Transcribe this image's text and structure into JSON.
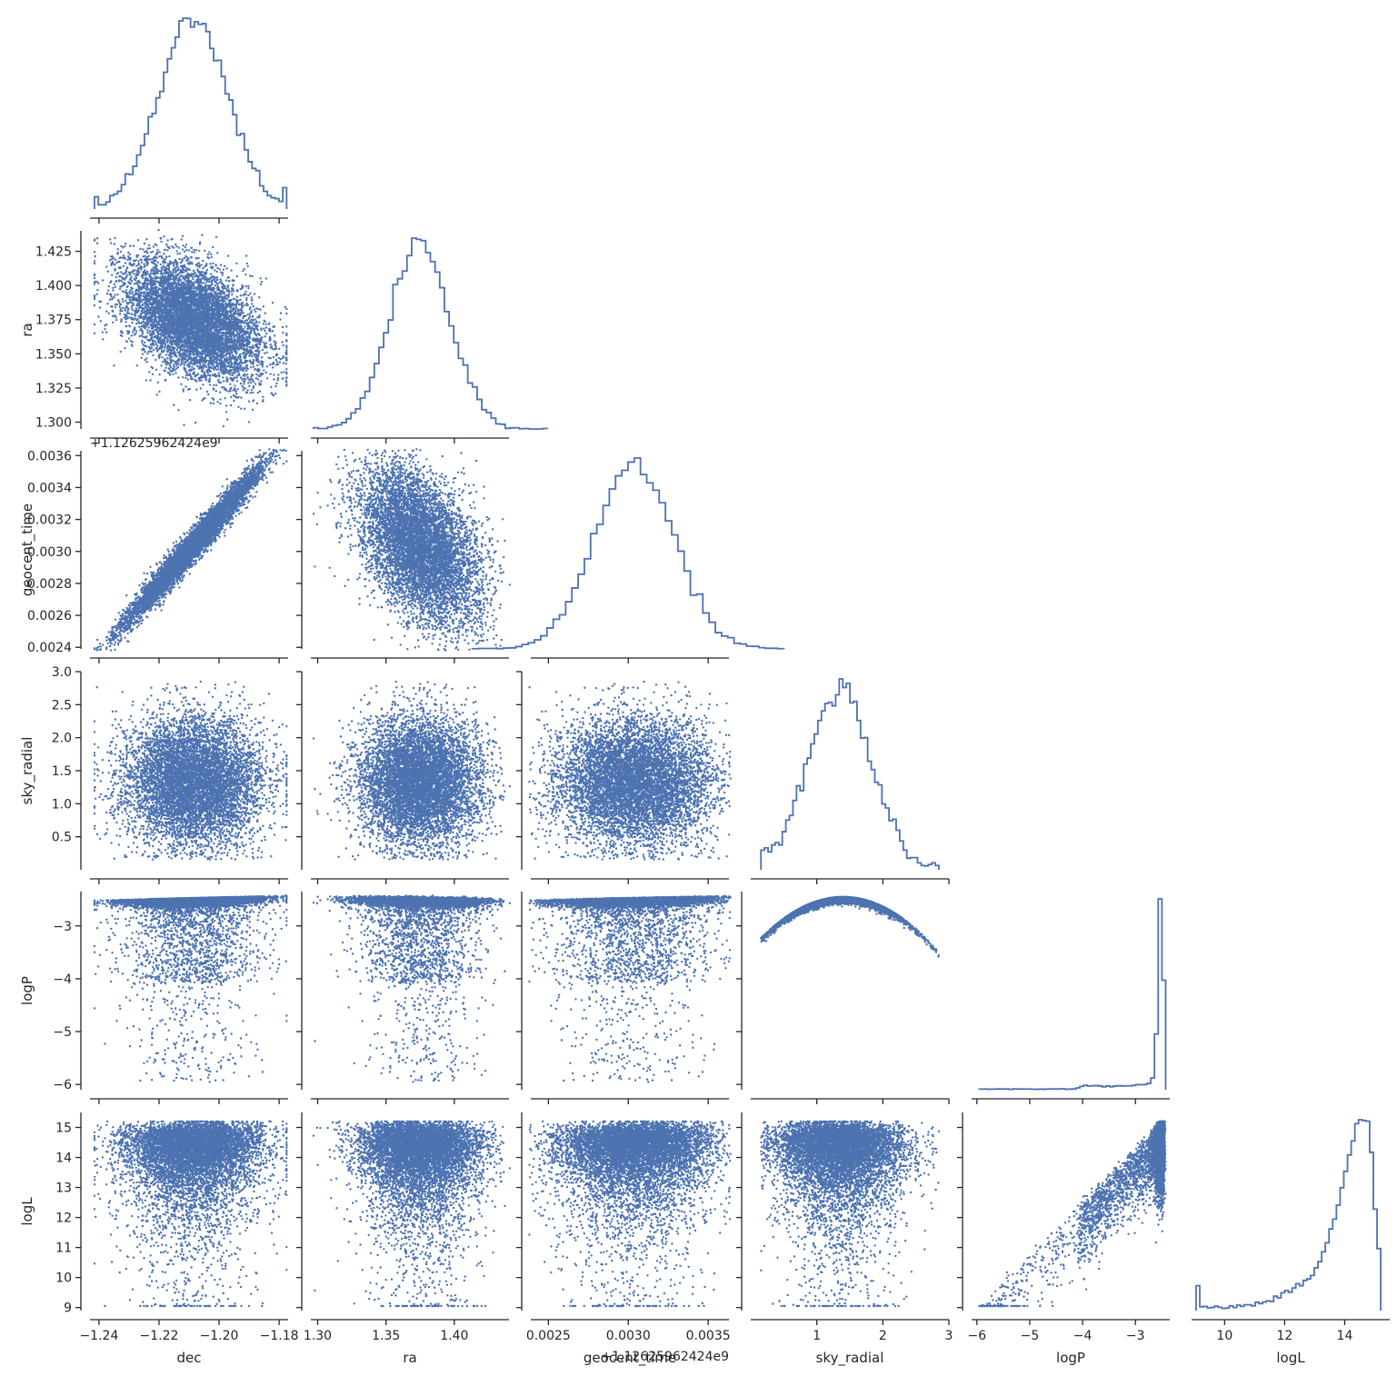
{
  "chart_data": {
    "type": "scatter",
    "subtype": "corner-pairplot",
    "variables": [
      "dec",
      "ra",
      "geocent_time",
      "sky_radial",
      "logP",
      "logL"
    ],
    "n_samples_approx": 30000,
    "color": "#4c72b0",
    "axes_color": "#262626",
    "text_color": "#262626",
    "grid": false,
    "diagonal": "step-histogram",
    "off_diagonal": "scatter",
    "axes": {
      "dec": {
        "label": "dec",
        "range": [
          -1.243,
          -1.177
        ],
        "ticks": [
          -1.24,
          -1.22,
          -1.2,
          -1.18
        ],
        "tick_labels": [
          "−1.24",
          "−1.22",
          "−1.20",
          "−1.18"
        ]
      },
      "ra": {
        "label": "ra",
        "range": [
          1.295,
          1.44
        ],
        "ticks": [
          1.3,
          1.325,
          1.35,
          1.375,
          1.4,
          1.425
        ],
        "tick_labels": [
          "1.300",
          "1.325",
          "1.350",
          "1.375",
          "1.400",
          "1.425"
        ],
        "x_ticks": [
          1.3,
          1.35,
          1.4
        ],
        "x_tick_labels": [
          "1.30",
          "1.35",
          "1.40"
        ]
      },
      "geocent_time": {
        "label": "geocent_time",
        "offset_text": "+1.12625962424e9",
        "range": [
          0.00239,
          0.00363
        ],
        "ticks": [
          0.0024,
          0.0026,
          0.0028,
          0.003,
          0.0032,
          0.0034,
          0.0036
        ],
        "tick_labels": [
          "0.0024",
          "0.0026",
          "0.0028",
          "0.0030",
          "0.0032",
          "0.0034",
          "0.0036"
        ],
        "x_ticks": [
          0.0025,
          0.003,
          0.0035
        ],
        "x_tick_labels": [
          "0.0025",
          "0.0030",
          "0.0035"
        ]
      },
      "sky_radial": {
        "label": "sky_radial",
        "range": [
          0.0,
          3.0
        ],
        "ticks": [
          0.5,
          1.0,
          1.5,
          2.0,
          2.5,
          3.0
        ],
        "tick_labels": [
          "0.5",
          "1.0",
          "1.5",
          "2.0",
          "2.5",
          "3.0"
        ],
        "x_ticks": [
          1,
          2,
          3
        ],
        "x_tick_labels": [
          "1",
          "2",
          "3"
        ]
      },
      "logP": {
        "label": "logP",
        "range": [
          -6.1,
          -2.35
        ],
        "ticks": [
          -6,
          -5,
          -4,
          -3
        ],
        "tick_labels": [
          "−6",
          "−5",
          "−4",
          "−3"
        ]
      },
      "logL": {
        "label": "logL",
        "range": [
          8.9,
          15.5
        ],
        "ticks": [
          9,
          10,
          11,
          12,
          13,
          14,
          15
        ],
        "tick_labels": [
          "9",
          "10",
          "11",
          "12",
          "13",
          "14",
          "15"
        ],
        "x_ticks": [
          10,
          12,
          14
        ],
        "x_tick_labels": [
          "10",
          "12",
          "14"
        ]
      }
    },
    "distributions": {
      "dec": {
        "mean": -1.2085,
        "sd": 0.0115
      },
      "ra": {
        "mean": 1.375,
        "sd": 0.0218
      },
      "geocent_time": {
        "mean": 0.00304,
        "sd": 0.00025
      },
      "sky_radial": {
        "mean": 1.35,
        "sd": 0.48,
        "min": 0.15,
        "max": 2.85
      },
      "logP": {
        "peak": -2.47,
        "lower_tail_min": -6.0
      },
      "logL": {
        "peak": 13.7,
        "max": 15.2,
        "lower_tail_min": 9.0
      }
    },
    "correlations": {
      "ra|dec": -0.45,
      "geocent_time|dec": 0.98,
      "geocent_time|ra": -0.6,
      "logP|sky_radial": "logP = -2.45 - 0.5 * (sky_radial - 1.4)^2 approximately (arch, max at sky_radial 1.4)",
      "logL|logP": "positive, logL rises with logP from 9 at logP -6 to 15.2 at logP -2.45"
    }
  }
}
